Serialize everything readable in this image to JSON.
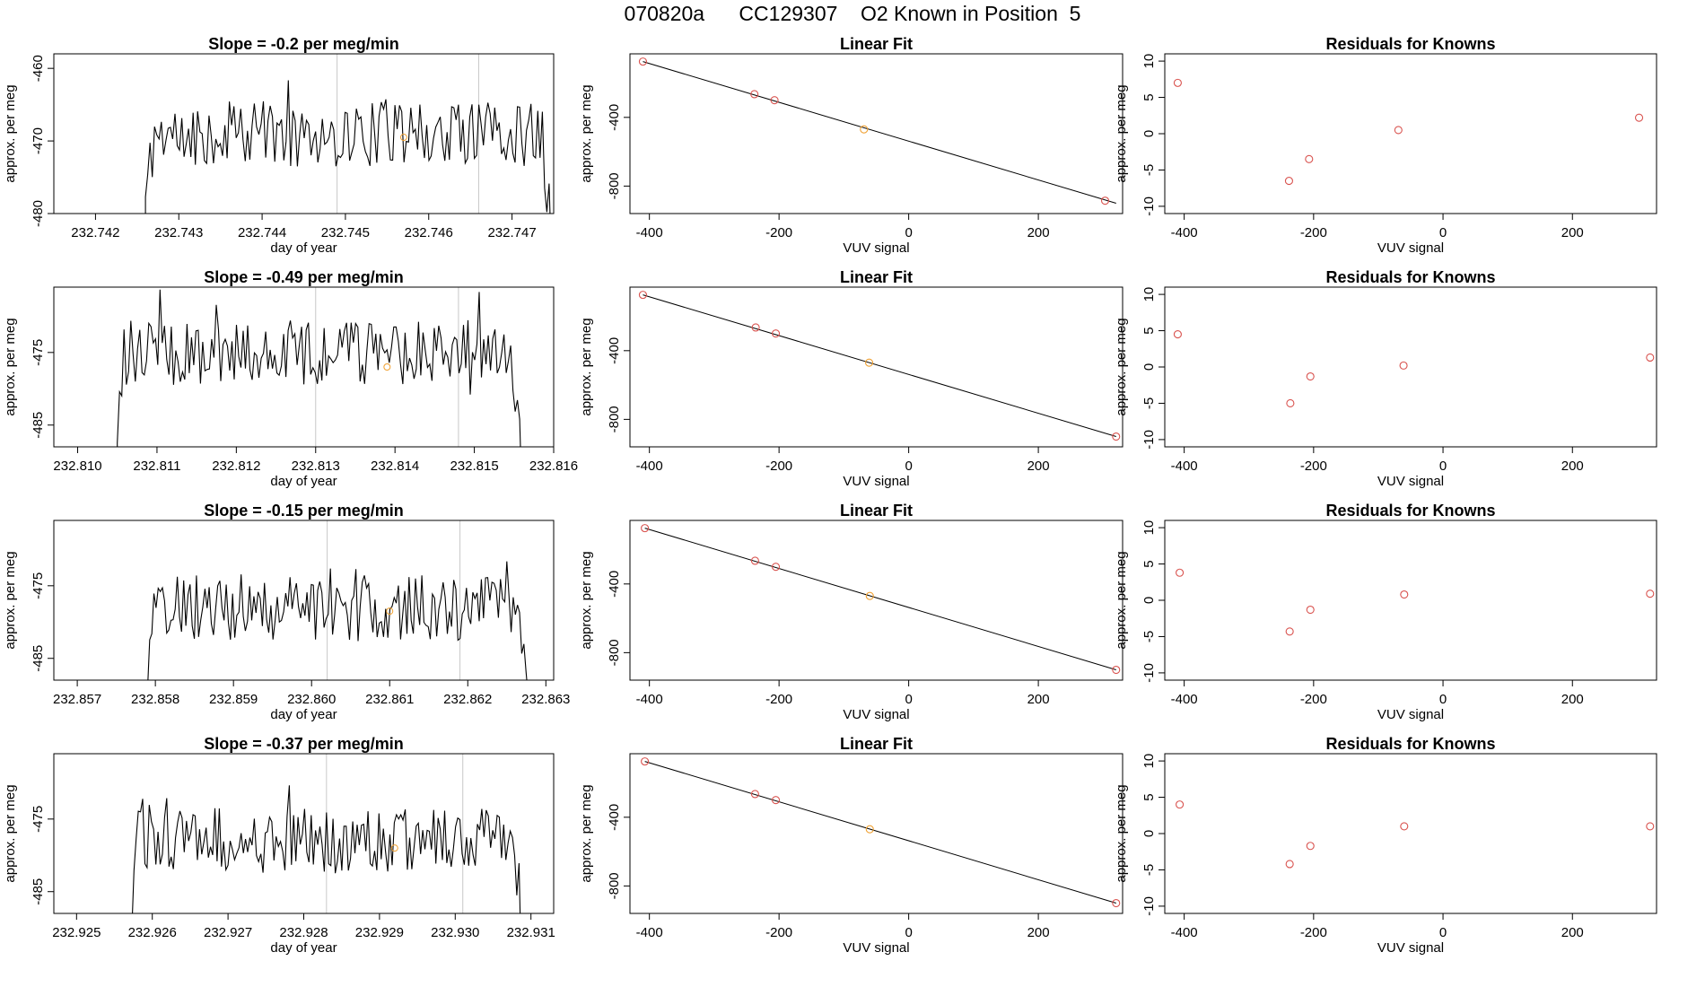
{
  "page_title": "070820a      CC129307    O2 Known in Position  5",
  "colors": {
    "line": "#000000",
    "marker_known": "#d9534f",
    "marker_highlight": "#f0a030",
    "vline": "#c8c8c8"
  },
  "chart_data": [
    {
      "type": "line",
      "row": 0,
      "panel": "timeseries",
      "title": "Slope =  -0.2  per meg/min",
      "xlabel": "day of year",
      "ylabel": "approx. per meg",
      "xlim": [
        232.7415,
        232.7475
      ],
      "ylim": [
        -480,
        -458
      ],
      "xticks": [
        232.742,
        232.743,
        232.744,
        232.745,
        232.746,
        232.747
      ],
      "xtick_labels": [
        "232.742",
        "232.743",
        "232.744",
        "232.745",
        "232.746",
        "232.747"
      ],
      "yticks": [
        -460,
        -470,
        -480
      ],
      "ytick_labels": [
        "-460",
        "-470",
        "-480"
      ],
      "x_start": 232.7426,
      "x_end": 232.7475,
      "base": -469,
      "vlines": [
        232.7449,
        232.7466
      ],
      "highlight": {
        "x": 232.7457,
        "y": -469.5
      },
      "seed": 11
    },
    {
      "type": "scatter",
      "row": 0,
      "panel": "fit",
      "title": "Linear Fit",
      "xlabel": "VUV signal",
      "ylabel": "approx. per meg",
      "xlim": [
        -430,
        330
      ],
      "ylim": [
        -960,
        -30
      ],
      "xticks": [
        -400,
        -200,
        0,
        200
      ],
      "xtick_labels": [
        "-400",
        "-200",
        "0",
        "200"
      ],
      "yticks": [
        -400,
        -800
      ],
      "ytick_labels": [
        "-400",
        "-800"
      ],
      "x": [
        -410,
        -238,
        -207,
        -69,
        303
      ],
      "y": [
        -75,
        -265,
        -300,
        -470,
        -885
      ],
      "highlight_index": 3,
      "fit_line": {
        "x": [
          -410,
          320
        ],
        "y": [
          -75,
          -900
        ]
      }
    },
    {
      "type": "scatter",
      "row": 0,
      "panel": "residuals",
      "title": "Residuals for Knowns",
      "xlabel": "VUV signal",
      "ylabel": "approx. per meg",
      "xlim": [
        -430,
        330
      ],
      "ylim": [
        -11,
        11
      ],
      "xticks": [
        -400,
        -200,
        0,
        200
      ],
      "xtick_labels": [
        "-400",
        "-200",
        "0",
        "200"
      ],
      "yticks": [
        10,
        5,
        0,
        -5,
        -10
      ],
      "ytick_labels": [
        "10",
        "5",
        "0",
        "-5",
        "-10"
      ],
      "x": [
        -410,
        -238,
        -207,
        -69,
        303
      ],
      "y": [
        7.0,
        -6.5,
        -3.5,
        0.5,
        2.2
      ]
    },
    {
      "type": "line",
      "row": 1,
      "panel": "timeseries",
      "title": "Slope =  -0.49  per meg/min",
      "xlabel": "day of year",
      "ylabel": "approx. per meg",
      "xlim": [
        232.8097,
        232.816
      ],
      "ylim": [
        -488,
        -466
      ],
      "xticks": [
        232.81,
        232.811,
        232.812,
        232.813,
        232.814,
        232.815,
        232.816
      ],
      "xtick_labels": [
        "232.810",
        "232.811",
        "232.812",
        "232.813",
        "232.814",
        "232.815",
        "232.816"
      ],
      "yticks": [
        -475,
        -485
      ],
      "ytick_labels": [
        "-475",
        "-485"
      ],
      "x_start": 232.8105,
      "x_end": 232.8156,
      "base": -475,
      "vlines": [
        232.813,
        232.8148
      ],
      "highlight": {
        "x": 232.8139,
        "y": -477
      },
      "seed": 23
    },
    {
      "type": "scatter",
      "row": 1,
      "panel": "fit",
      "title": "Linear Fit",
      "xlabel": "VUV signal",
      "ylabel": "approx. per meg",
      "xlim": [
        -430,
        330
      ],
      "ylim": [
        -960,
        -30
      ],
      "xticks": [
        -400,
        -200,
        0,
        200
      ],
      "xtick_labels": [
        "-400",
        "-200",
        "0",
        "200"
      ],
      "yticks": [
        -400,
        -800
      ],
      "ytick_labels": [
        "-400",
        "-800"
      ],
      "x": [
        -410,
        -236,
        -205,
        -61,
        320
      ],
      "y": [
        -75,
        -265,
        -300,
        -470,
        -900
      ],
      "highlight_index": 3,
      "fit_line": {
        "x": [
          -410,
          320
        ],
        "y": [
          -75,
          -900
        ]
      }
    },
    {
      "type": "scatter",
      "row": 1,
      "panel": "residuals",
      "title": "Residuals for Knowns",
      "xlabel": "VUV signal",
      "ylabel": "approx. per meg",
      "xlim": [
        -430,
        330
      ],
      "ylim": [
        -11,
        11
      ],
      "xticks": [
        -400,
        -200,
        0,
        200
      ],
      "xtick_labels": [
        "-400",
        "-200",
        "0",
        "200"
      ],
      "yticks": [
        10,
        5,
        0,
        -5,
        -10
      ],
      "ytick_labels": [
        "10",
        "5",
        "0",
        "-5",
        "-10"
      ],
      "x": [
        -410,
        -236,
        -205,
        -61,
        320
      ],
      "y": [
        4.5,
        -5.0,
        -1.3,
        0.2,
        1.3
      ]
    },
    {
      "type": "line",
      "row": 2,
      "panel": "timeseries",
      "title": "Slope =  -0.15  per meg/min",
      "xlabel": "day of year",
      "ylabel": "approx. per meg",
      "xlim": [
        232.8567,
        232.8631
      ],
      "ylim": [
        -488,
        -466
      ],
      "xticks": [
        232.857,
        232.858,
        232.859,
        232.86,
        232.861,
        232.862,
        232.863
      ],
      "xtick_labels": [
        "232.857",
        "232.858",
        "232.859",
        "232.860",
        "232.861",
        "232.862",
        "232.863"
      ],
      "yticks": [
        -475,
        -485
      ],
      "ytick_labels": [
        "-475",
        "-485"
      ],
      "x_start": 232.8579,
      "x_end": 232.8628,
      "base": -478,
      "vlines": [
        232.8602,
        232.8619
      ],
      "highlight": {
        "x": 232.861,
        "y": -478.5
      },
      "seed": 37
    },
    {
      "type": "scatter",
      "row": 2,
      "panel": "fit",
      "title": "Linear Fit",
      "xlabel": "VUV signal",
      "ylabel": "approx. per meg",
      "xlim": [
        -430,
        330
      ],
      "ylim": [
        -960,
        -30
      ],
      "xticks": [
        -400,
        -200,
        0,
        200
      ],
      "xtick_labels": [
        "-400",
        "-200",
        "0",
        "200"
      ],
      "yticks": [
        -400,
        -800
      ],
      "ytick_labels": [
        "-400",
        "-800"
      ],
      "x": [
        -407,
        -237,
        -205,
        -60,
        320
      ],
      "y": [
        -75,
        -265,
        -300,
        -470,
        -900
      ],
      "highlight_index": 3,
      "fit_line": {
        "x": [
          -407,
          320
        ],
        "y": [
          -75,
          -900
        ]
      }
    },
    {
      "type": "scatter",
      "row": 2,
      "panel": "residuals",
      "title": "Residuals for Knowns",
      "xlabel": "VUV signal",
      "ylabel": "approx. per meg",
      "xlim": [
        -430,
        330
      ],
      "ylim": [
        -11,
        11
      ],
      "xticks": [
        -400,
        -200,
        0,
        200
      ],
      "xtick_labels": [
        "-400",
        "-200",
        "0",
        "200"
      ],
      "yticks": [
        10,
        5,
        0,
        -5,
        -10
      ],
      "ytick_labels": [
        "10",
        "5",
        "0",
        "-5",
        "-10"
      ],
      "x": [
        -407,
        -237,
        -205,
        -60,
        320
      ],
      "y": [
        3.8,
        -4.3,
        -1.3,
        0.8,
        0.9
      ]
    },
    {
      "type": "line",
      "row": 3,
      "panel": "timeseries",
      "title": "Slope =  -0.37  per meg/min",
      "xlabel": "day of year",
      "ylabel": "approx. per meg",
      "xlim": [
        232.9247,
        232.9313
      ],
      "ylim": [
        -488,
        -466
      ],
      "xticks": [
        232.925,
        232.926,
        232.927,
        232.928,
        232.929,
        232.93,
        232.931
      ],
      "xtick_labels": [
        "232.925",
        "232.926",
        "232.927",
        "232.928",
        "232.929",
        "232.930",
        "232.931"
      ],
      "yticks": [
        -475,
        -485
      ],
      "ytick_labels": [
        "-475",
        "-485"
      ],
      "x_start": 232.9257,
      "x_end": 232.9309,
      "base": -478,
      "vlines": [
        232.9283,
        232.9301
      ],
      "highlight": {
        "x": 232.9292,
        "y": -479
      },
      "seed": 53
    },
    {
      "type": "scatter",
      "row": 3,
      "panel": "fit",
      "title": "Linear Fit",
      "xlabel": "VUV signal",
      "ylabel": "approx. per meg",
      "xlim": [
        -430,
        330
      ],
      "ylim": [
        -960,
        -30
      ],
      "xticks": [
        -400,
        -200,
        0,
        200
      ],
      "xtick_labels": [
        "-400",
        "-200",
        "0",
        "200"
      ],
      "yticks": [
        -400,
        -800
      ],
      "ytick_labels": [
        "-400",
        "-800"
      ],
      "x": [
        -407,
        -237,
        -205,
        -60,
        320
      ],
      "y": [
        -75,
        -265,
        -300,
        -470,
        -900
      ],
      "highlight_index": 3,
      "fit_line": {
        "x": [
          -407,
          320
        ],
        "y": [
          -75,
          -900
        ]
      }
    },
    {
      "type": "scatter",
      "row": 3,
      "panel": "residuals",
      "title": "Residuals for Knowns",
      "xlabel": "VUV signal",
      "ylabel": "approx. per meg",
      "xlim": [
        -430,
        330
      ],
      "ylim": [
        -11,
        11
      ],
      "xticks": [
        -400,
        -200,
        0,
        200
      ],
      "xtick_labels": [
        "-400",
        "-200",
        "0",
        "200"
      ],
      "yticks": [
        10,
        5,
        0,
        -5,
        -10
      ],
      "ytick_labels": [
        "10",
        "5",
        "0",
        "-5",
        "-10"
      ],
      "x": [
        -407,
        -237,
        -205,
        -60,
        320
      ],
      "y": [
        4.0,
        -4.2,
        -1.7,
        1.0,
        1.0
      ]
    }
  ]
}
